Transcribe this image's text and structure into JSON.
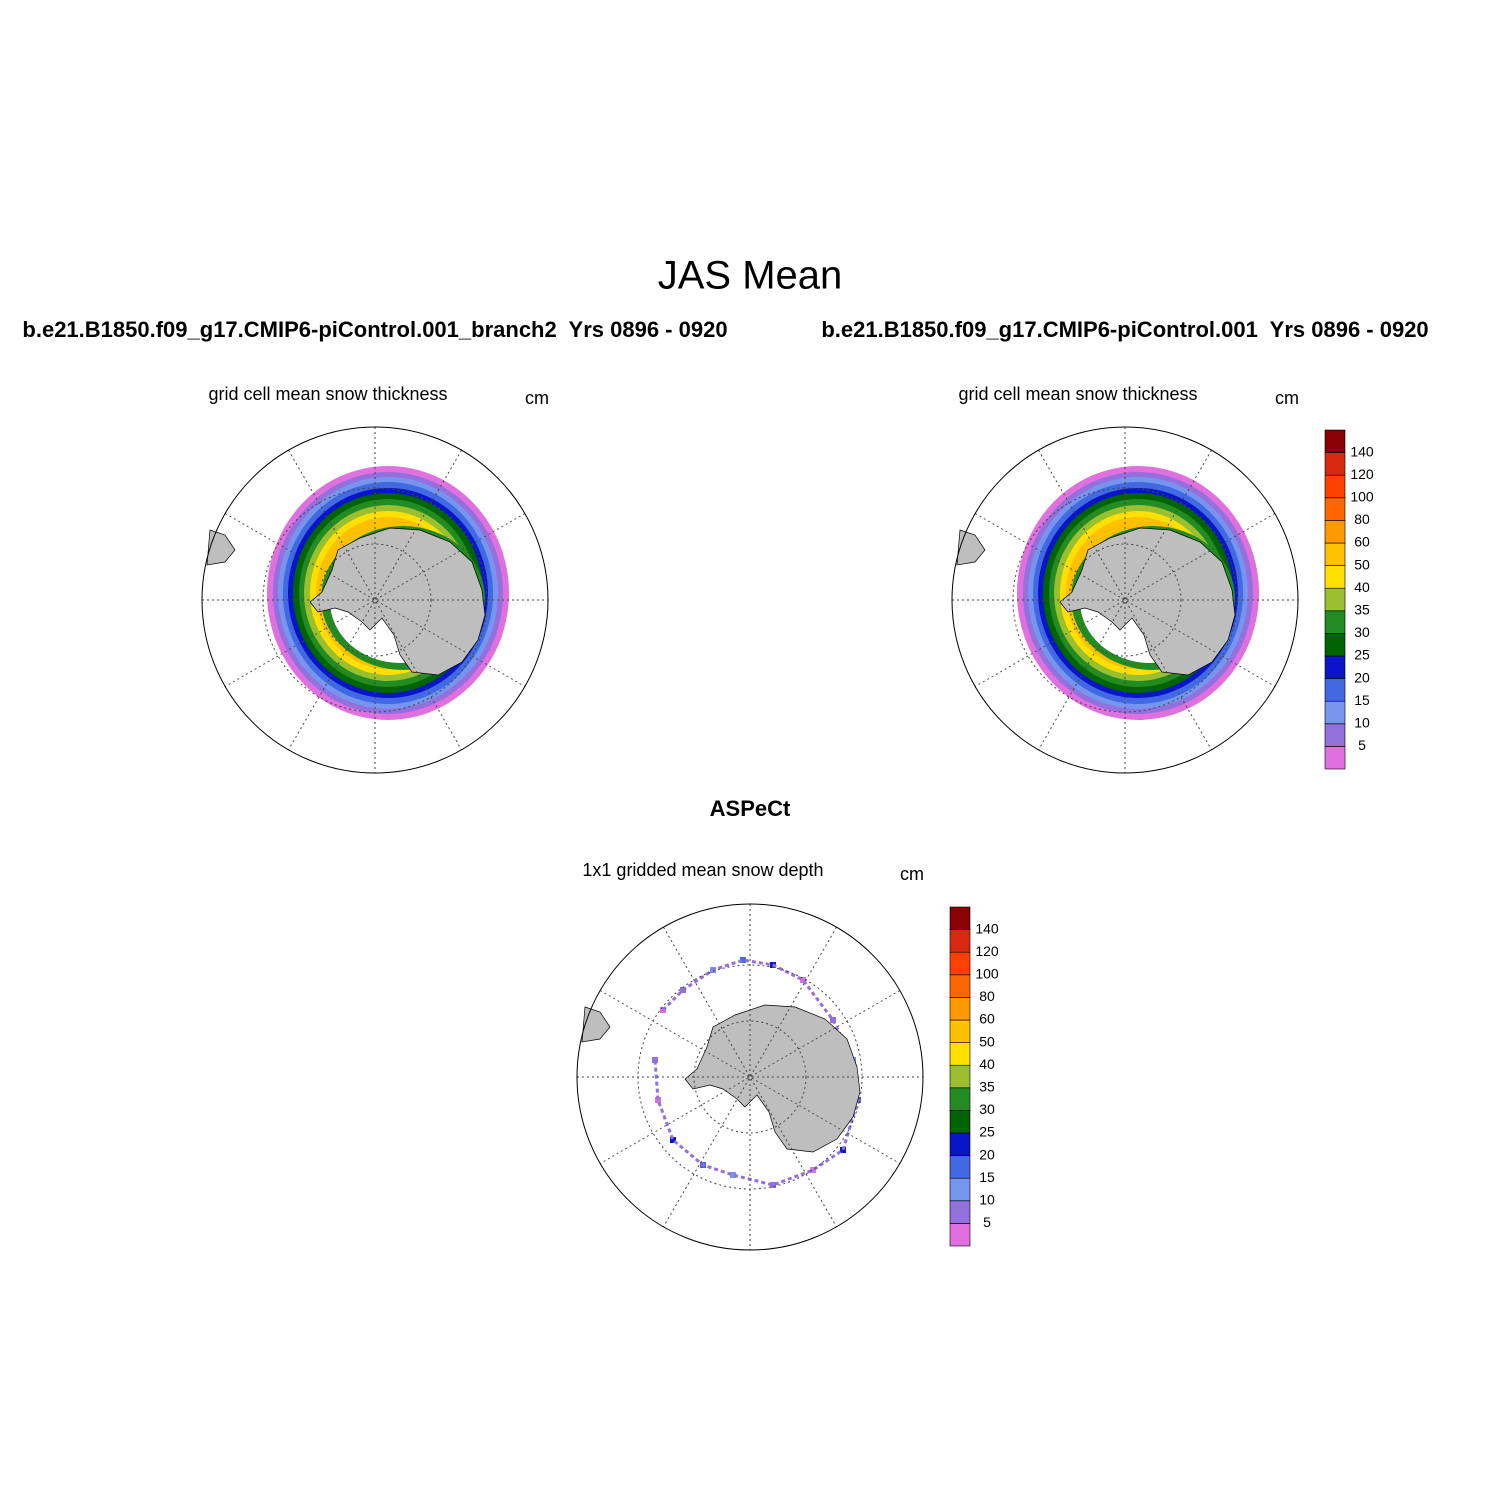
{
  "title": "JAS Mean",
  "panels": [
    {
      "case": "b.e21.B1850.f09_g17.CMIP6-piControl.001_branch2  Yrs 0896 - 0920",
      "subtitle": "grid cell mean snow thickness",
      "units": "cm"
    },
    {
      "case": "b.e21.B1850.f09_g17.CMIP6-piControl.001  Yrs 0896 - 0920",
      "subtitle": "grid cell mean snow thickness",
      "units": "cm"
    },
    {
      "case": "ASPeCt",
      "subtitle": "1x1 gridded mean snow depth",
      "units": "cm"
    }
  ],
  "colorbar": {
    "labels": [
      5,
      10,
      15,
      20,
      25,
      30,
      35,
      40,
      50,
      60,
      80,
      100,
      120,
      140
    ],
    "colors": [
      "#e070e0",
      "#9370db",
      "#7595ee",
      "#4169e1",
      "#0a14c8",
      "#006400",
      "#228b22",
      "#9ac030",
      "#ffe000",
      "#ffc000",
      "#ff9900",
      "#ff6600",
      "#ff4000",
      "#d82810",
      "#8b0000"
    ]
  }
}
